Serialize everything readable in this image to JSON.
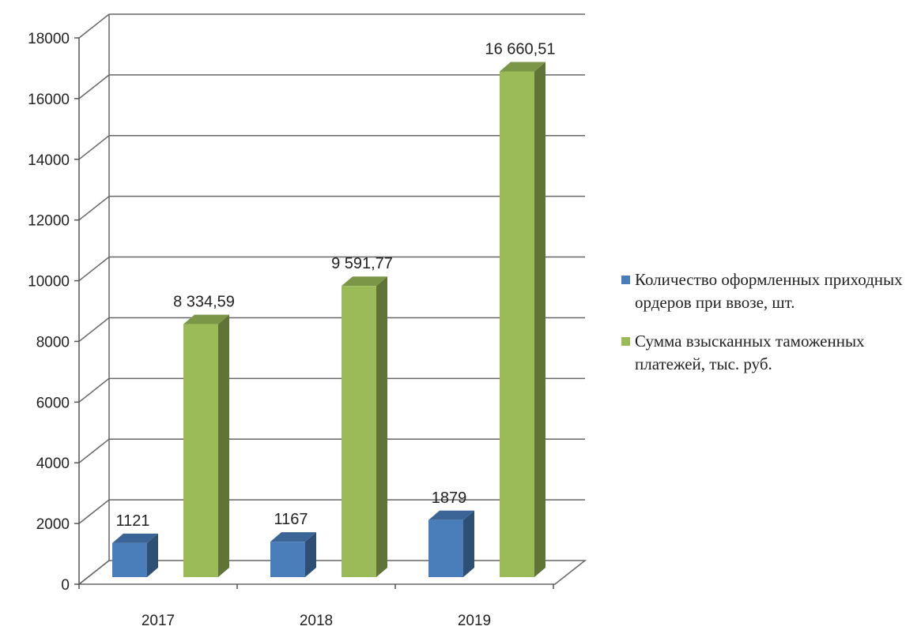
{
  "chart_data": {
    "type": "bar",
    "style": "3d-clustered-column",
    "categories": [
      "2017",
      "2018",
      "2019"
    ],
    "series": [
      {
        "name": "Количество оформленных приходных ордеров при ввозе, шт.",
        "values": [
          1121,
          1167,
          1879
        ],
        "labels": [
          "1121",
          "1167",
          "1879"
        ],
        "color": "#4a7ebb"
      },
      {
        "name": "Сумма взысканных таможенных платежей, тыс. руб.",
        "values": [
          8334.59,
          9591.77,
          16660.51
        ],
        "labels": [
          "8 334,59",
          "9 591,77",
          "16 660,51"
        ],
        "color": "#9bbb59"
      }
    ],
    "ylim": [
      0,
      18000
    ],
    "yticks": [
      "0",
      "2000",
      "4000",
      "6000",
      "8000",
      "10000",
      "12000",
      "14000",
      "16000",
      "18000"
    ],
    "grid": true,
    "legend_position": "right"
  }
}
